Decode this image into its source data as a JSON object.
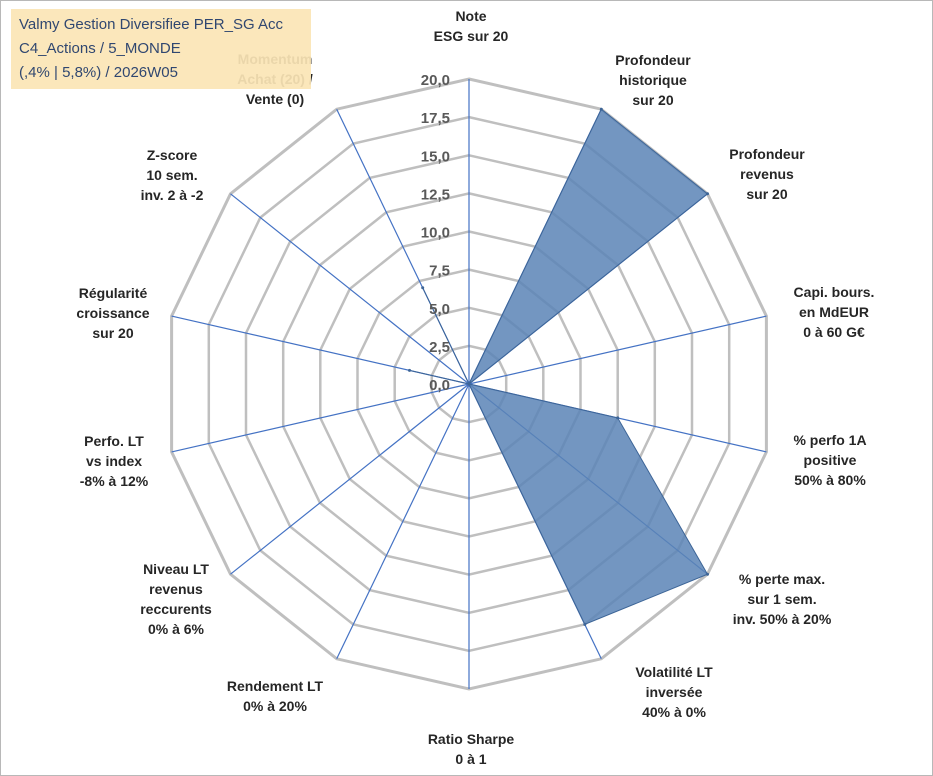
{
  "title_lines": [
    "Valmy Gestion Diversifiee PER_SG Acc",
    "C4_Actions / 5_MONDE",
    "(,4% | 5,8%) / 2026W05"
  ],
  "chart_data": {
    "type": "radar",
    "rmax": 20,
    "ticks": [
      "0,0",
      "2,5",
      "5,0",
      "7,5",
      "10,0",
      "12,5",
      "15,0",
      "17,5",
      "20,0"
    ],
    "axes": [
      {
        "lines": [
          "Note",
          "ESG sur 20"
        ],
        "value": 0
      },
      {
        "lines": [
          "Profondeur",
          "historique",
          "sur 20"
        ],
        "value": 20
      },
      {
        "lines": [
          "Profondeur",
          "revenus",
          "sur 20"
        ],
        "value": 20
      },
      {
        "lines": [
          "Capi. bours.",
          "en MdEUR",
          "0 à 60 G€"
        ],
        "value": 0
      },
      {
        "lines": [
          "% perfo 1A",
          "positive",
          "50% à 80%"
        ],
        "value": 10
      },
      {
        "lines": [
          "% perte max.",
          "sur 1 sem.",
          "inv. 50% à 20%"
        ],
        "value": 20
      },
      {
        "lines": [
          "Volatilité LT",
          "inversée",
          "40% à 0%"
        ],
        "value": 17.5
      },
      {
        "lines": [
          "Ratio Sharpe",
          "0 à 1"
        ],
        "value": 0
      },
      {
        "lines": [
          "Rendement LT",
          "0% à 20%"
        ],
        "value": 0
      },
      {
        "lines": [
          "Niveau LT",
          "revenus",
          "reccurents",
          "0% à 6%"
        ],
        "value": 0
      },
      {
        "lines": [
          "Perfo. LT",
          "vs index",
          "-8% à 12%"
        ],
        "value": 0
      },
      {
        "lines": [
          "Régularité",
          "croissance",
          "sur 20"
        ],
        "value": 4
      },
      {
        "lines": [
          "Z-score",
          "10 sem.",
          "inv. 2 à -2"
        ],
        "value": 0
      },
      {
        "lines": [
          "Momentum",
          "Achat (20) /",
          "Vente (0)"
        ],
        "value": 7
      }
    ],
    "colors": {
      "fill": "#5b84b6",
      "stroke": "#3d6597",
      "grid": "#bfbfbf",
      "spoke": "#4472c4"
    }
  }
}
